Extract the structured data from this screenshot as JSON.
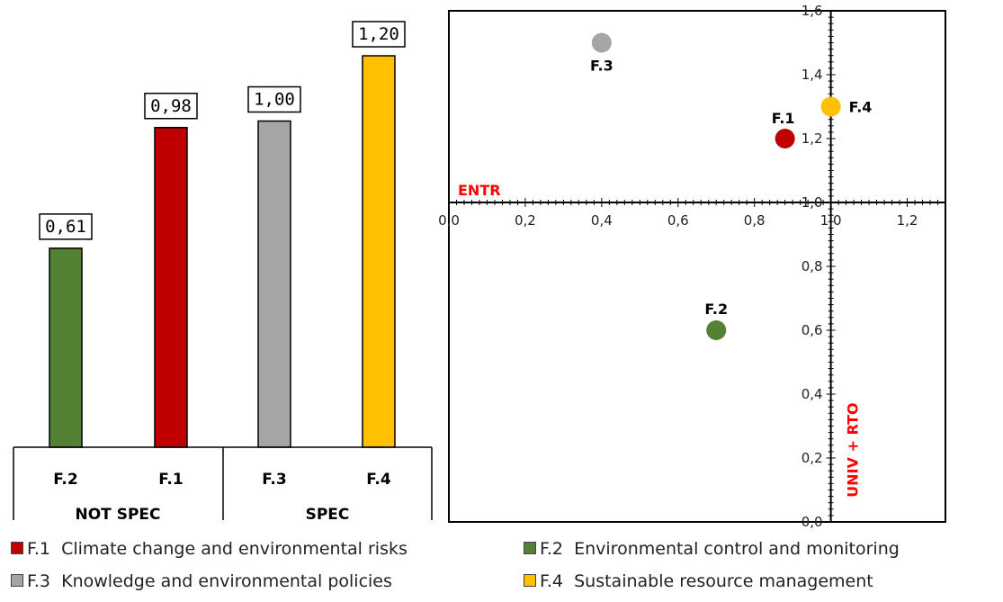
{
  "chart_data": [
    {
      "type": "bar",
      "categories": [
        "F.2",
        "F.1",
        "F.3",
        "F.4"
      ],
      "groups": [
        {
          "label": "NOT SPEC",
          "categories": [
            "F.2",
            "F.1"
          ]
        },
        {
          "label": "SPEC",
          "categories": [
            "F.3",
            "F.4"
          ]
        }
      ],
      "values": [
        0.61,
        0.98,
        1.0,
        1.2
      ],
      "data_labels": [
        "0,61",
        "0,98",
        "1,00",
        "1,20"
      ],
      "colors": [
        "#548235",
        "#C00000",
        "#A5A5A5",
        "#FFC000"
      ],
      "ylim": [
        0,
        1.3
      ],
      "grid": false
    },
    {
      "type": "scatter",
      "points": [
        {
          "label": "F.1",
          "x": 0.88,
          "y": 1.2,
          "color": "#C00000"
        },
        {
          "label": "F.2",
          "x": 0.7,
          "y": 0.6,
          "color": "#548235"
        },
        {
          "label": "F.3",
          "x": 0.4,
          "y": 1.5,
          "color": "#A5A5A5"
        },
        {
          "label": "F.4",
          "x": 1.0,
          "y": 1.3,
          "color": "#FFC000"
        }
      ],
      "xlim": [
        0,
        1.3
      ],
      "ylim": [
        0,
        1.6
      ],
      "x_ticks": [
        "0,0",
        "0,2",
        "0,4",
        "0,6",
        "0,8",
        "1,0",
        "1,2"
      ],
      "y_ticks": [
        "0,0",
        "0,2",
        "0,4",
        "0,6",
        "0,8",
        "1,0",
        "1,2",
        "1,4",
        "1,6"
      ],
      "x_axis_crosses_y": 1.0,
      "y_axis_crosses_x": 1.0,
      "xlabel": "ENTR",
      "ylabel": "UNIV + RTO",
      "axis_label_color": "#FF0000",
      "grid": false
    }
  ],
  "legend": [
    {
      "code": "F.1",
      "text": "Climate change and environmental risks",
      "color": "#C00000"
    },
    {
      "code": "F.2",
      "text": "Environmental control and monitoring",
      "color": "#548235"
    },
    {
      "code": "F.3",
      "text": "Knowledge and environmental policies",
      "color": "#A5A5A5"
    },
    {
      "code": "F.4",
      "text": "Sustainable resource management",
      "color": "#FFC000"
    }
  ]
}
